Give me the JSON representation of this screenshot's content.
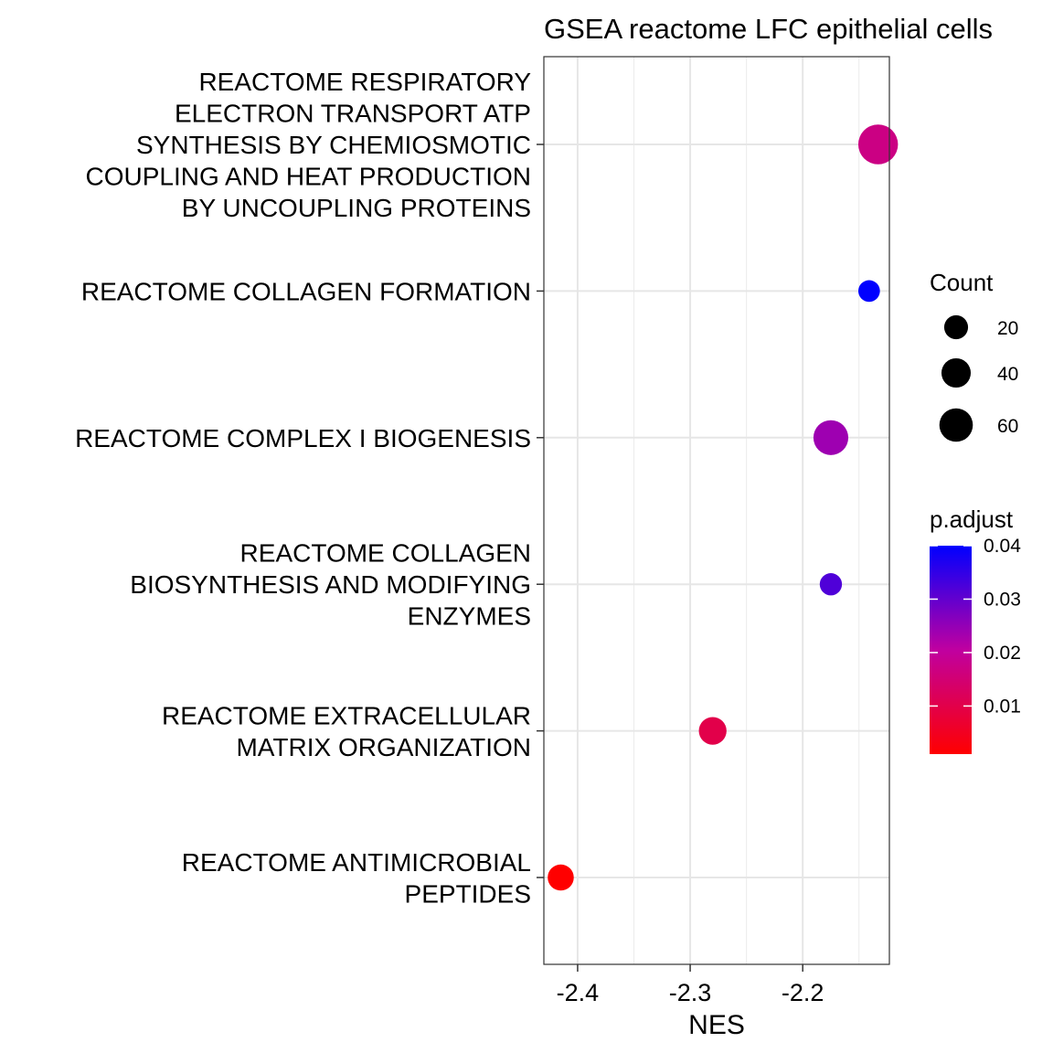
{
  "chart_data": {
    "type": "scatter",
    "title": "GSEA reactome LFC epithelial cells",
    "xlabel": "NES",
    "ylabel": "",
    "xlim": [
      -2.43,
      -2.123
    ],
    "x_ticks": [
      -2.4,
      -2.3,
      -2.2
    ],
    "x_tick_labels": [
      "-2.4",
      "-2.3",
      "-2.2"
    ],
    "grid": true,
    "categories": [
      "REACTOME RESPIRATORY ELECTRON TRANSPORT ATP SYNTHESIS BY CHEMIOSMOTIC COUPLING AND HEAT PRODUCTION BY UNCOUPLING PROTEINS",
      "REACTOME COLLAGEN FORMATION",
      "REACTOME COMPLEX I BIOGENESIS",
      "REACTOME COLLAGEN BIOSYNTHESIS AND MODIFYING ENZYMES",
      "REACTOME EXTRACELLULAR MATRIX ORGANIZATION",
      "REACTOME ANTIMICROBIAL PEPTIDES"
    ],
    "category_label_lines": [
      [
        "REACTOME RESPIRATORY",
        "ELECTRON TRANSPORT ATP",
        "SYNTHESIS BY CHEMIOSMOTIC",
        "COUPLING AND HEAT PRODUCTION",
        "BY UNCOUPLING PROTEINS"
      ],
      [
        "REACTOME COLLAGEN FORMATION"
      ],
      [
        "REACTOME COMPLEX I BIOGENESIS"
      ],
      [
        "REACTOME COLLAGEN",
        "BIOSYNTHESIS AND MODIFYING",
        "ENZYMES"
      ],
      [
        "REACTOME EXTRACELLULAR",
        "MATRIX ORGANIZATION"
      ],
      [
        "REACTOME ANTIMICROBIAL",
        "PEPTIDES"
      ]
    ],
    "points": [
      {
        "category": "REACTOME RESPIRATORY ELECTRON TRANSPORT ATP SYNTHESIS BY CHEMIOSMOTIC COUPLING AND HEAT PRODUCTION BY UNCOUPLING PROTEINS",
        "NES": -2.133,
        "count": 65,
        "p_adjust": 0.017
      },
      {
        "category": "REACTOME COLLAGEN FORMATION",
        "NES": -2.141,
        "count": 9,
        "p_adjust": 0.04
      },
      {
        "category": "REACTOME COMPLEX I BIOGENESIS",
        "NES": -2.175,
        "count": 45,
        "p_adjust": 0.024
      },
      {
        "category": "REACTOME COLLAGEN BIOSYNTHESIS AND MODIFYING ENZYMES",
        "NES": -2.175,
        "count": 10,
        "p_adjust": 0.032
      },
      {
        "category": "REACTOME EXTRACELLULAR MATRIX ORGANIZATION",
        "NES": -2.28,
        "count": 22,
        "p_adjust": 0.01
      },
      {
        "category": "REACTOME ANTIMICROBIAL PEPTIDES",
        "NES": -2.415,
        "count": 18,
        "p_adjust": 0.001
      }
    ],
    "size_legend": {
      "title": "Count",
      "values": [
        20,
        40,
        60
      ],
      "labels": [
        "20",
        "40",
        "60"
      ]
    },
    "color_legend": {
      "title": "p.adjust",
      "range": [
        0.001,
        0.04
      ],
      "ticks": [
        0.04,
        0.03,
        0.02,
        0.01
      ],
      "tick_labels": [
        "0.04",
        "0.03",
        "0.02",
        "0.01"
      ],
      "low_color": "#ff0000",
      "high_color": "#0000ff",
      "mid_color": "#c000a0"
    }
  }
}
